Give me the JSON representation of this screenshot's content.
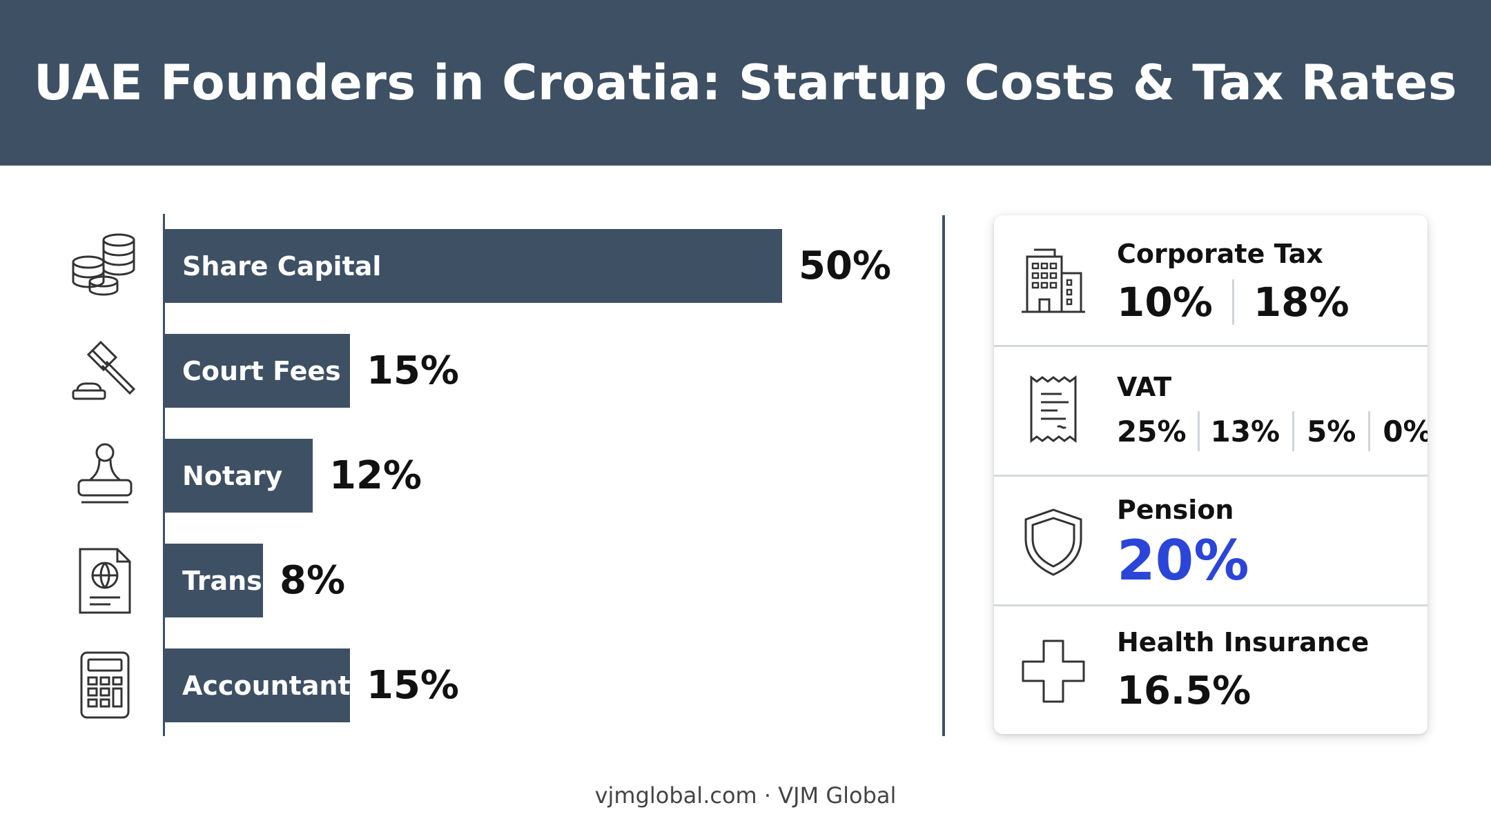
{
  "header": {
    "title": "UAE Founders in Croatia: Startup Costs & Tax Rates"
  },
  "chart_data": {
    "type": "bar",
    "orientation": "horizontal",
    "title": "",
    "categories": [
      "Share Capital",
      "Court Fees",
      "Notary",
      "Trans",
      "Accountant"
    ],
    "values": [
      50,
      15,
      12,
      8,
      15
    ],
    "value_labels": [
      "50%",
      "15%",
      "12%",
      "8%",
      "15%"
    ],
    "icons": [
      "coin-stack-icon",
      "gavel-icon",
      "stamp-icon",
      "passport-icon",
      "calculator-icon"
    ],
    "unit": "%",
    "xlim": [
      0,
      50
    ],
    "grid": false,
    "legend": "none",
    "bar_color": "#3e5063"
  },
  "tax_panel": {
    "sections": [
      {
        "title": "Corporate Tax",
        "icon": "building-icon",
        "rates": [
          "10%",
          "18%"
        ]
      },
      {
        "title": "VAT",
        "icon": "receipt-icon",
        "rates": [
          "25%",
          "13%",
          "5%",
          "0%"
        ]
      },
      {
        "title": "Pension",
        "icon": "shield-icon",
        "rates": [
          "20%"
        ],
        "highlight_color": "#2b45d9"
      },
      {
        "title": "Health Insurance",
        "icon": "medical-cross-icon",
        "rates": [
          "16.5%"
        ]
      }
    ]
  },
  "footer": {
    "text": "vjmglobal.com · VJM Global"
  },
  "colors": {
    "header_bg": "#3e5063",
    "accent_blue": "#2b45d9",
    "text": "#111111"
  }
}
